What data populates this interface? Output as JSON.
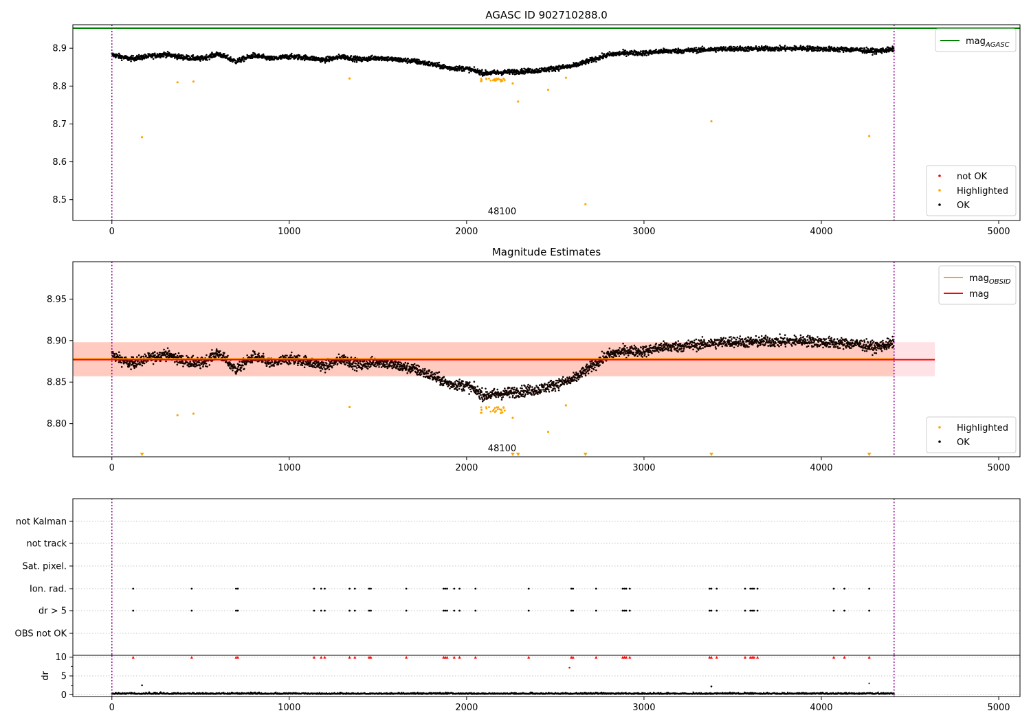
{
  "chart_data": [
    {
      "type": "scatter",
      "title": "AGASC ID 902710288.0",
      "xlim": [
        -220,
        5120
      ],
      "ylim": [
        8.445,
        8.962
      ],
      "xticks": [
        0,
        1000,
        2000,
        3000,
        4000,
        5000
      ],
      "yticks": [
        8.5,
        8.6,
        8.7,
        8.8,
        8.9
      ],
      "obsid_label": "48100",
      "obsid_x": 2200,
      "vlines_x": [
        0,
        4410
      ],
      "hlines": [
        {
          "name": "mag_AGASC",
          "y": 8.953,
          "color": "#008000"
        }
      ],
      "legend_lines": [
        {
          "label": "mag",
          "sub": "AGASC",
          "color": "#008000"
        }
      ],
      "legend_points": [
        {
          "label": "not OK",
          "color": "#ff0000"
        },
        {
          "label": "Highlighted",
          "color": "#ffa500"
        },
        {
          "label": "OK",
          "color": "#000000"
        }
      ],
      "trend_x": [
        0,
        100,
        200,
        300,
        400,
        500,
        600,
        700,
        800,
        900,
        1000,
        1100,
        1200,
        1300,
        1400,
        1500,
        1600,
        1700,
        1800,
        1900,
        2000,
        2100,
        2200,
        2300,
        2400,
        2500,
        2600,
        2700,
        2800,
        2900,
        3000,
        3100,
        3200,
        3300,
        3400,
        3500,
        3600,
        3700,
        3800,
        3900,
        4000,
        4100,
        4200,
        4300,
        4410
      ],
      "trend_y": [
        8.883,
        8.872,
        8.878,
        8.884,
        8.876,
        8.872,
        8.885,
        8.865,
        8.881,
        8.872,
        8.878,
        8.875,
        8.869,
        8.878,
        8.87,
        8.875,
        8.87,
        8.866,
        8.858,
        8.848,
        8.846,
        8.834,
        8.836,
        8.839,
        8.841,
        8.847,
        8.853,
        8.868,
        8.883,
        8.888,
        8.887,
        8.892,
        8.893,
        8.895,
        8.897,
        8.899,
        8.898,
        8.899,
        8.899,
        8.9,
        8.898,
        8.897,
        8.896,
        8.892,
        8.897
      ],
      "highlighted_x": [
        370,
        460,
        1340,
        2260,
        2290,
        2460,
        2560,
        2670,
        3380,
        4270,
        170
      ],
      "highlighted_y": [
        8.81,
        8.812,
        8.82,
        8.807,
        8.759,
        8.79,
        8.822,
        8.488,
        8.707,
        8.668,
        8.665
      ]
    },
    {
      "type": "scatter",
      "title": "Magnitude Estimates",
      "xlim": [
        -220,
        5120
      ],
      "ylim": [
        8.76,
        8.995
      ],
      "xticks": [
        0,
        1000,
        2000,
        3000,
        4000,
        5000
      ],
      "yticks": [
        8.8,
        8.85,
        8.9,
        8.95
      ],
      "obsid_label": "48100",
      "obsid_x": 2200,
      "vlines_x": [
        0,
        4410
      ],
      "band_obsid": {
        "x0": -220,
        "x1": 4410,
        "y0": 8.857,
        "y1": 8.898,
        "color": "#ffa07a"
      },
      "band_total": {
        "x0": -220,
        "x1": 4640,
        "y0": 8.857,
        "y1": 8.898,
        "color": "#ffb6c1"
      },
      "hlines": [
        {
          "name": "mag_OBSID",
          "y": 8.878,
          "x0": -220,
          "x1": 4410,
          "color": "#ffa500"
        },
        {
          "name": "mag",
          "y": 8.877,
          "x0": -220,
          "x1": 4640,
          "color": "#ff0000"
        }
      ],
      "legend_lines": [
        {
          "label": "mag",
          "sub": "OBSID",
          "color": "#ffa500"
        },
        {
          "label": "mag",
          "sub": "",
          "color": "#ff0000"
        }
      ],
      "legend_points": [
        {
          "label": "Highlighted",
          "color": "#ffa500"
        },
        {
          "label": "OK",
          "color": "#000000"
        }
      ],
      "offscale_marker_x": [
        170,
        2260,
        2290,
        2670,
        3380,
        4270
      ]
    },
    {
      "type": "scatter",
      "xlim": [
        -220,
        5120
      ],
      "xticks": [
        0,
        1000,
        2000,
        3000,
        4000,
        5000
      ],
      "vlines_x": [
        0,
        4410
      ],
      "flag_rows": [
        "not Kalman",
        "not track",
        "Sat. pixel.",
        "Ion. rad.",
        "dr > 5",
        "OBS not OK"
      ],
      "flag_events_x": [
        120,
        450,
        700,
        710,
        1140,
        1180,
        1200,
        1340,
        1370,
        1450,
        1460,
        1660,
        1870,
        1880,
        1890,
        1930,
        1960,
        2050,
        2350,
        2590,
        2600,
        2730,
        2880,
        2890,
        2900,
        2920,
        3370,
        3380,
        3410,
        3570,
        3600,
        3610,
        3620,
        3640,
        4070,
        4130,
        4270
      ],
      "dr_ylabel": "dr",
      "dr_ylim": [
        -0.5,
        10.5
      ],
      "dr_yticks": [
        0,
        5,
        10
      ],
      "dr_clipped_note": "values above 10 drawn at 10",
      "dr_spikes_x": [
        170,
        2580,
        3380,
        4270
      ],
      "dr_spikes_y": [
        2.5,
        7.2,
        2.2,
        3.0
      ]
    }
  ]
}
